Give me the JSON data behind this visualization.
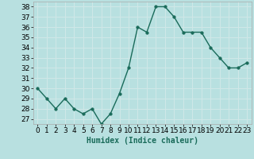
{
  "x": [
    0,
    1,
    2,
    3,
    4,
    5,
    6,
    7,
    8,
    9,
    10,
    11,
    12,
    13,
    14,
    15,
    16,
    17,
    18,
    19,
    20,
    21,
    22,
    23
  ],
  "y": [
    30,
    29,
    28,
    29,
    28,
    27.5,
    28,
    26.5,
    27.5,
    29.5,
    32,
    36,
    35.5,
    38,
    38,
    37,
    35.5,
    35.5,
    35.5,
    34,
    33,
    32,
    32,
    32.5
  ],
  "line_color": "#1a6b5a",
  "marker_color": "#1a6b5a",
  "bg_color": "#b8e0e0",
  "grid_color": "#d0e8e8",
  "xlabel": "Humidex (Indice chaleur)",
  "ylim": [
    26.5,
    38.5
  ],
  "xlim": [
    -0.5,
    23.5
  ],
  "yticks": [
    27,
    28,
    29,
    30,
    31,
    32,
    33,
    34,
    35,
    36,
    37,
    38
  ],
  "xtick_labels": [
    "0",
    "1",
    "2",
    "3",
    "4",
    "5",
    "6",
    "7",
    "8",
    "9",
    "10",
    "11",
    "12",
    "13",
    "14",
    "15",
    "16",
    "17",
    "18",
    "19",
    "20",
    "21",
    "22",
    "23"
  ],
  "xlabel_fontsize": 7,
  "tick_fontsize": 6.5,
  "line_width": 1.0,
  "marker_size": 2.5
}
